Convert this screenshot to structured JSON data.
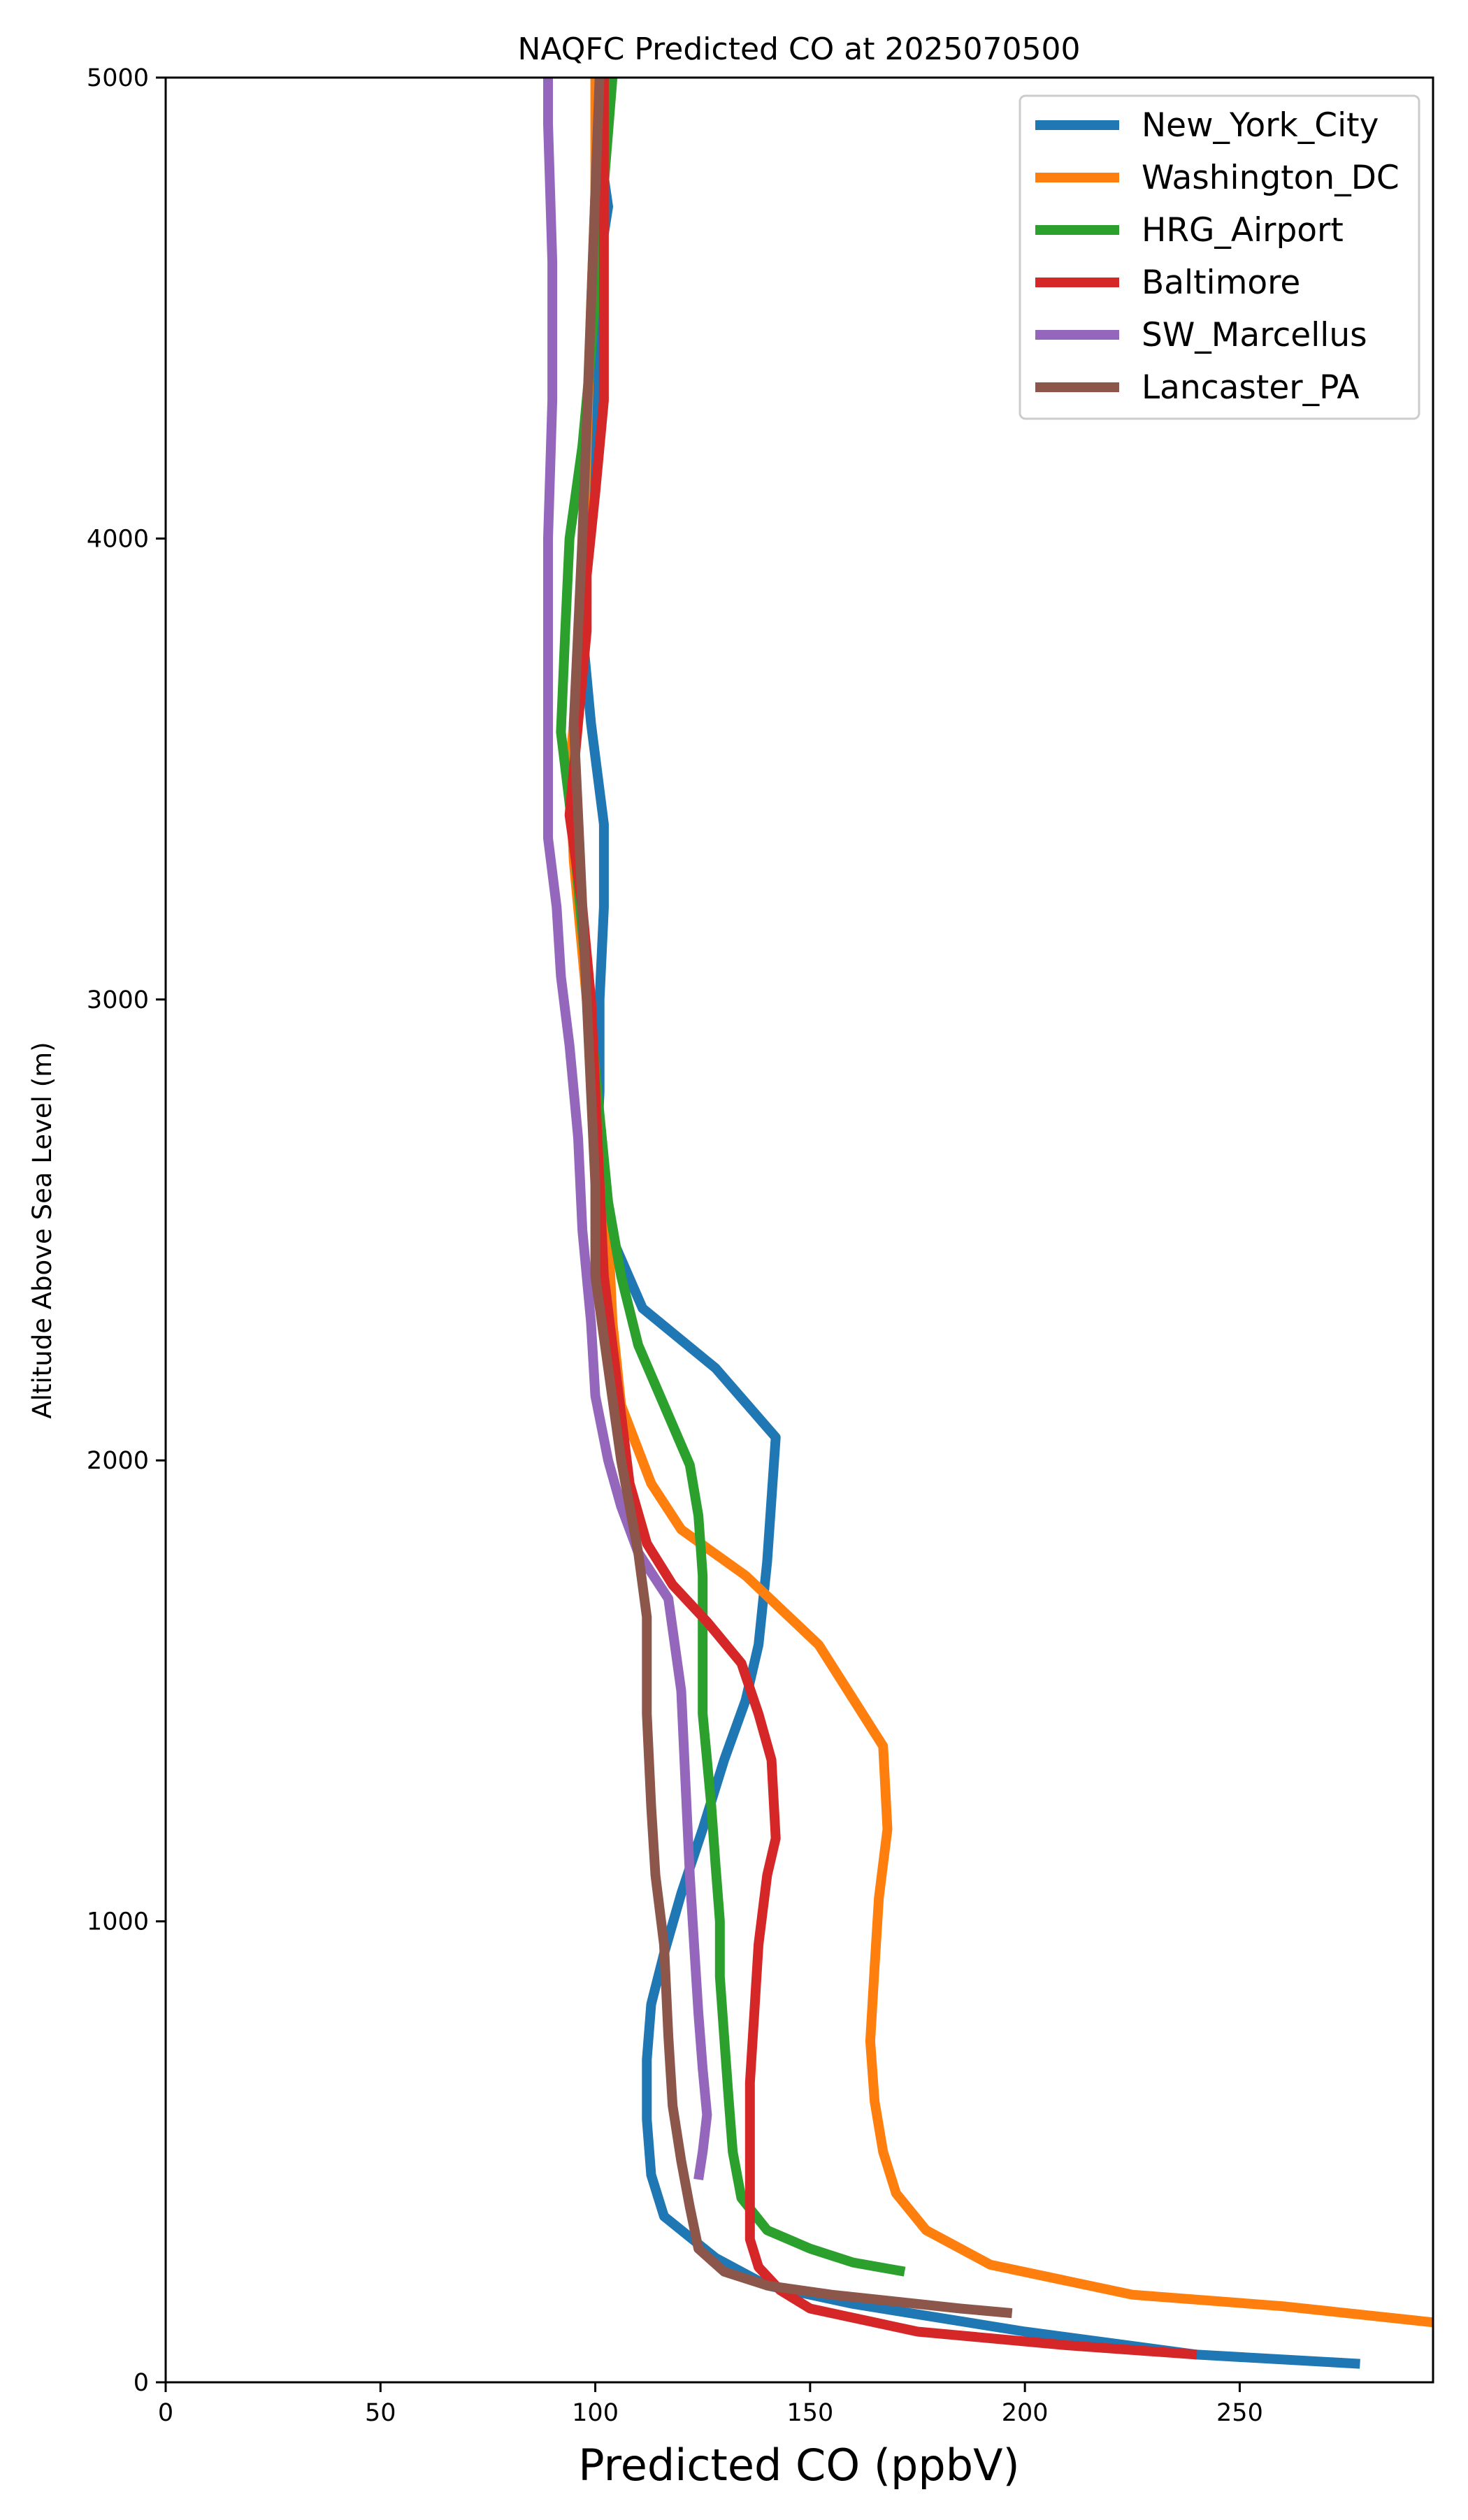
{
  "chart_data": {
    "type": "line",
    "title": "NAQFC Predicted CO at 2025070500",
    "xlabel": "Predicted CO (ppbV)",
    "ylabel": "Altitude Above Sea Level (m)",
    "xlim": [
      0,
      295
    ],
    "ylim": [
      0,
      5000
    ],
    "xticks": [
      0,
      50,
      100,
      150,
      200,
      250
    ],
    "yticks": [
      0,
      1000,
      2000,
      3000,
      4000,
      5000
    ],
    "grid": false,
    "legend_position": "top-right",
    "series": [
      {
        "name": "New_York_City",
        "color": "#1f77b4",
        "points": [
          [
            278,
            40
          ],
          [
            240,
            60
          ],
          [
            200,
            110
          ],
          [
            160,
            170
          ],
          [
            140,
            210
          ],
          [
            128,
            270
          ],
          [
            116,
            360
          ],
          [
            113,
            450
          ],
          [
            112,
            570
          ],
          [
            112,
            700
          ],
          [
            113,
            820
          ],
          [
            116,
            930
          ],
          [
            120,
            1060
          ],
          [
            125,
            1200
          ],
          [
            130,
            1350
          ],
          [
            135,
            1480
          ],
          [
            138,
            1600
          ],
          [
            140,
            1780
          ],
          [
            142,
            2050
          ],
          [
            128,
            2200
          ],
          [
            111,
            2330
          ],
          [
            104,
            2480
          ],
          [
            100,
            2600
          ],
          [
            101,
            2800
          ],
          [
            101,
            3000
          ],
          [
            102,
            3200
          ],
          [
            102,
            3380
          ],
          [
            99,
            3600
          ],
          [
            97,
            3800
          ],
          [
            98,
            4000
          ],
          [
            100,
            4200
          ],
          [
            100,
            4400
          ],
          [
            101,
            4600
          ],
          [
            103,
            4720
          ],
          [
            101,
            4850
          ],
          [
            100,
            5000
          ]
        ]
      },
      {
        "name": "Washington_DC",
        "color": "#ff7f0e",
        "points": [
          [
            295,
            130
          ],
          [
            260,
            165
          ],
          [
            225,
            190
          ],
          [
            192,
            255
          ],
          [
            177,
            330
          ],
          [
            170,
            410
          ],
          [
            167,
            500
          ],
          [
            165,
            610
          ],
          [
            164,
            740
          ],
          [
            165,
            900
          ],
          [
            166,
            1050
          ],
          [
            168,
            1200
          ],
          [
            167,
            1380
          ],
          [
            152,
            1600
          ],
          [
            135,
            1750
          ],
          [
            120,
            1850
          ],
          [
            113,
            1950
          ],
          [
            106,
            2120
          ],
          [
            104,
            2300
          ],
          [
            103,
            2500
          ],
          [
            101,
            2700
          ],
          [
            99,
            2900
          ],
          [
            97,
            3100
          ],
          [
            95,
            3300
          ],
          [
            94,
            3500
          ],
          [
            96,
            3700
          ],
          [
            97,
            3900
          ],
          [
            98,
            4200
          ],
          [
            99,
            4500
          ],
          [
            100,
            4750
          ],
          [
            100,
            5000
          ]
        ]
      },
      {
        "name": "HRG_Airport",
        "color": "#2ca02c",
        "points": [
          [
            172,
            240
          ],
          [
            160,
            260
          ],
          [
            150,
            290
          ],
          [
            140,
            330
          ],
          [
            134,
            400
          ],
          [
            132,
            500
          ],
          [
            131,
            620
          ],
          [
            130,
            750
          ],
          [
            129,
            880
          ],
          [
            129,
            1000
          ],
          [
            128,
            1120
          ],
          [
            127,
            1250
          ],
          [
            126,
            1350
          ],
          [
            125,
            1450
          ],
          [
            125,
            1600
          ],
          [
            125,
            1750
          ],
          [
            124,
            1880
          ],
          [
            122,
            1990
          ],
          [
            116,
            2120
          ],
          [
            110,
            2250
          ],
          [
            106,
            2400
          ],
          [
            103,
            2560
          ],
          [
            101,
            2750
          ],
          [
            99,
            2950
          ],
          [
            97,
            3150
          ],
          [
            95,
            3350
          ],
          [
            92,
            3580
          ],
          [
            93,
            3800
          ],
          [
            94,
            4000
          ],
          [
            97,
            4200
          ],
          [
            99,
            4400
          ],
          [
            101,
            4650
          ],
          [
            104,
            5000
          ]
        ]
      },
      {
        "name": "Baltimore",
        "color": "#d62728",
        "points": [
          [
            240,
            60
          ],
          [
            210,
            80
          ],
          [
            175,
            110
          ],
          [
            150,
            160
          ],
          [
            143,
            200
          ],
          [
            138,
            250
          ],
          [
            136,
            310
          ],
          [
            136,
            400
          ],
          [
            136,
            500
          ],
          [
            136,
            650
          ],
          [
            137,
            800
          ],
          [
            138,
            950
          ],
          [
            140,
            1100
          ],
          [
            142,
            1180
          ],
          [
            141,
            1350
          ],
          [
            138,
            1450
          ],
          [
            134,
            1560
          ],
          [
            126,
            1650
          ],
          [
            118,
            1730
          ],
          [
            112,
            1820
          ],
          [
            108,
            1950
          ],
          [
            106,
            2100
          ],
          [
            104,
            2250
          ],
          [
            102,
            2400
          ],
          [
            101,
            2600
          ],
          [
            100,
            2800
          ],
          [
            99,
            3000
          ],
          [
            97,
            3200
          ],
          [
            94,
            3400
          ],
          [
            96,
            3600
          ],
          [
            98,
            3800
          ],
          [
            98,
            3920
          ],
          [
            100,
            4100
          ],
          [
            102,
            4300
          ],
          [
            102,
            4500
          ],
          [
            102,
            4750
          ],
          [
            102,
            5000
          ]
        ]
      },
      {
        "name": "SW_Marcellus",
        "color": "#9467bd",
        "points": [
          [
            124,
            440
          ],
          [
            125,
            500
          ],
          [
            126,
            580
          ],
          [
            125,
            680
          ],
          [
            124,
            800
          ],
          [
            123,
            950
          ],
          [
            122,
            1100
          ],
          [
            121,
            1300
          ],
          [
            120,
            1500
          ],
          [
            117,
            1700
          ],
          [
            110,
            1800
          ],
          [
            106,
            1900
          ],
          [
            103,
            2000
          ],
          [
            100,
            2140
          ],
          [
            99,
            2300
          ],
          [
            97,
            2500
          ],
          [
            96,
            2700
          ],
          [
            94,
            2900
          ],
          [
            92,
            3050
          ],
          [
            91,
            3200
          ],
          [
            89,
            3350
          ],
          [
            89,
            3500
          ],
          [
            89,
            3700
          ],
          [
            89,
            4000
          ],
          [
            90,
            4300
          ],
          [
            90,
            4600
          ],
          [
            89,
            4900
          ],
          [
            89,
            5000
          ]
        ]
      },
      {
        "name": "Lancaster_PA",
        "color": "#8c564b",
        "points": [
          [
            197,
            150
          ],
          [
            185,
            160
          ],
          [
            170,
            175
          ],
          [
            155,
            190
          ],
          [
            140,
            210
          ],
          [
            130,
            240
          ],
          [
            124,
            290
          ],
          [
            122,
            380
          ],
          [
            120,
            480
          ],
          [
            118,
            600
          ],
          [
            117,
            750
          ],
          [
            116,
            950
          ],
          [
            114,
            1100
          ],
          [
            113,
            1250
          ],
          [
            112,
            1450
          ],
          [
            112,
            1660
          ],
          [
            110,
            1800
          ],
          [
            106,
            2000
          ],
          [
            103,
            2200
          ],
          [
            100,
            2400
          ],
          [
            100,
            2600
          ],
          [
            99,
            2800
          ],
          [
            98,
            3000
          ],
          [
            97,
            3200
          ],
          [
            96,
            3400
          ],
          [
            95,
            3600
          ],
          [
            96,
            3800
          ],
          [
            97,
            4000
          ],
          [
            98,
            4250
          ],
          [
            99,
            4500
          ],
          [
            100,
            4750
          ],
          [
            101,
            5000
          ]
        ]
      }
    ]
  }
}
